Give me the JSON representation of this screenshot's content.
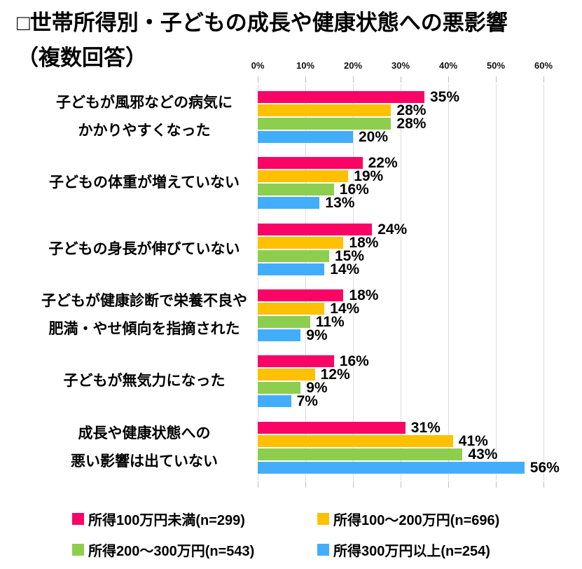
{
  "title": {
    "line1": "□世帯所得別・子どもの成長や健康状態への悪影響",
    "line2": "（複数回答）"
  },
  "colors": {
    "background": "#FFFFFF",
    "gridline": "#DCDCDC",
    "tick": "#BFBFBF",
    "text": "#000000"
  },
  "chart_data": {
    "type": "bar",
    "orientation": "horizontal",
    "title": "□世帯所得別・子どもの成長や健康状態への悪影響（複数回答）",
    "xlabel": "",
    "ylabel": "",
    "xlim": [
      0,
      60
    ],
    "grid": true,
    "legend_position": "bottom",
    "axis_ticks": [
      "0%",
      "10%",
      "20%",
      "30%",
      "40%",
      "50%",
      "60%"
    ],
    "categories": [
      "子どもが風邪などの病気にかかりやすくなった",
      "子どもの体重が増えていない",
      "子どもの身長が伸びていない",
      "子どもが健康診断で栄養不良や肥満・やせ傾向を指摘された",
      "子どもが無気力になった",
      "成長や健康状態への悪い影響は出ていない"
    ],
    "categories_lines": [
      [
        "子どもが風邪などの病気に",
        "かかりやすくなった"
      ],
      [
        "子どもの体重が増えていない"
      ],
      [
        "子どもの身長が伸びていない"
      ],
      [
        "子どもが健康診断で栄養不良や",
        "肥満・やせ傾向を指摘された"
      ],
      [
        "子どもが無気力になった"
      ],
      [
        "成長や健康状態への",
        "悪い影響は出ていない"
      ]
    ],
    "series": [
      {
        "name": "所得100万円未満(n=299)",
        "color": "#FA0566",
        "values": [
          35,
          22,
          24,
          18,
          16,
          31
        ],
        "labels": [
          "35%",
          "22%",
          "24%",
          "18%",
          "16%",
          "31%"
        ]
      },
      {
        "name": "所得100～200万円(n=696)",
        "color": "#FFC000",
        "values": [
          28,
          19,
          18,
          14,
          12,
          41
        ],
        "labels": [
          "28%",
          "19%",
          "18%",
          "14%",
          "12%",
          "41%"
        ]
      },
      {
        "name": "所得200～300万円(n=543)",
        "color": "#8DCE4E",
        "values": [
          28,
          16,
          15,
          11,
          9,
          43
        ],
        "labels": [
          "28%",
          "16%",
          "15%",
          "11%",
          "9%",
          "43%"
        ]
      },
      {
        "name": "所得300万円以上(n=254)",
        "color": "#42AEFB",
        "values": [
          20,
          13,
          14,
          9,
          7,
          56
        ],
        "labels": [
          "20%",
          "13%",
          "14%",
          "9%",
          "7%",
          "56%"
        ]
      }
    ]
  }
}
